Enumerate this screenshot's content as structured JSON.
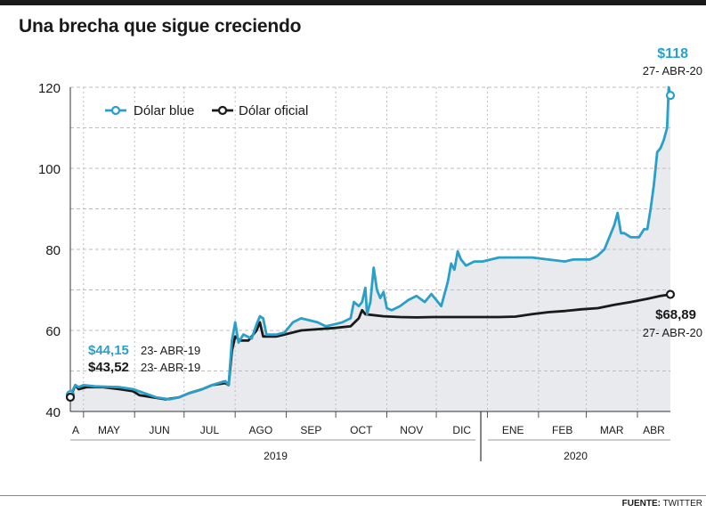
{
  "title": "Una brecha que sigue creciendo",
  "source_label": "FUENTE:",
  "source_value": "TWITTER",
  "colors": {
    "blue": "#2a9fc8",
    "official": "#1a1a1a",
    "fill": "#e8eaed",
    "grid": "#bdbdbd"
  },
  "chart_data": {
    "type": "line",
    "title": "Una brecha que sigue creciendo",
    "ylim": [
      40,
      120
    ],
    "yticks": [
      40,
      60,
      80,
      100,
      120
    ],
    "months": [
      "A",
      "MAY",
      "JUN",
      "JUL",
      "AGO",
      "SEP",
      "OCT",
      "NOV",
      "DIC",
      "ENE",
      "FEB",
      "MAR",
      "ABR"
    ],
    "years": [
      "2019",
      "2020"
    ],
    "legend": {
      "blue": "Dólar blue",
      "official": "Dólar oficial",
      "position": "top-left"
    },
    "x_unit": "days since 23-ABR-2019",
    "series": [
      {
        "name": "Dólar blue",
        "points": [
          [
            0,
            44.15
          ],
          [
            3,
            46.5
          ],
          [
            5,
            46
          ],
          [
            8,
            46.5
          ],
          [
            15,
            46.2
          ],
          [
            30,
            46.0
          ],
          [
            38,
            45.5
          ],
          [
            45,
            44.5
          ],
          [
            52,
            43.5
          ],
          [
            60,
            43.0
          ],
          [
            66,
            43.5
          ],
          [
            72,
            44.5
          ],
          [
            80,
            45.5
          ],
          [
            86,
            46.5
          ],
          [
            94,
            47.5
          ],
          [
            96,
            46.5
          ],
          [
            98,
            57.5
          ],
          [
            100,
            62
          ],
          [
            102,
            57
          ],
          [
            105,
            59
          ],
          [
            110,
            58
          ],
          [
            113,
            61.5
          ],
          [
            115,
            63.5
          ],
          [
            117,
            63
          ],
          [
            119,
            59
          ],
          [
            125,
            59
          ],
          [
            130,
            59.5
          ],
          [
            135,
            62
          ],
          [
            140,
            63
          ],
          [
            145,
            62.5
          ],
          [
            150,
            62
          ],
          [
            155,
            61
          ],
          [
            160,
            61.5
          ],
          [
            165,
            62
          ],
          [
            170,
            63
          ],
          [
            172,
            67
          ],
          [
            175,
            66
          ],
          [
            177,
            67
          ],
          [
            179,
            70.5
          ],
          [
            180,
            64
          ],
          [
            182,
            67
          ],
          [
            184,
            75.5
          ],
          [
            186,
            70
          ],
          [
            188,
            68
          ],
          [
            190,
            69.5
          ],
          [
            192,
            65.5
          ],
          [
            195,
            65
          ],
          [
            200,
            66
          ],
          [
            205,
            67.5
          ],
          [
            210,
            68.5
          ],
          [
            215,
            67
          ],
          [
            219,
            69
          ],
          [
            222,
            67.5
          ],
          [
            225,
            66
          ],
          [
            229,
            72
          ],
          [
            231,
            76.5
          ],
          [
            233,
            75
          ],
          [
            235,
            79.5
          ],
          [
            237,
            77.5
          ],
          [
            240,
            76
          ],
          [
            245,
            77
          ],
          [
            250,
            77
          ],
          [
            255,
            77.5
          ],
          [
            260,
            78
          ],
          [
            270,
            78
          ],
          [
            280,
            78
          ],
          [
            290,
            77.5
          ],
          [
            300,
            77
          ],
          [
            305,
            77.5
          ],
          [
            310,
            77.5
          ],
          [
            315,
            77.5
          ],
          [
            318,
            78
          ],
          [
            320,
            78.5
          ],
          [
            324,
            80
          ],
          [
            326,
            82
          ],
          [
            328,
            84
          ],
          [
            330,
            86
          ],
          [
            332,
            89
          ],
          [
            334,
            84
          ],
          [
            336,
            84
          ],
          [
            340,
            83
          ],
          [
            345,
            83
          ],
          [
            348,
            85
          ],
          [
            350,
            85
          ],
          [
            352,
            90
          ],
          [
            354,
            96
          ],
          [
            356,
            104
          ],
          [
            358,
            105
          ],
          [
            360,
            107
          ],
          [
            362,
            110
          ],
          [
            363,
            120
          ],
          [
            364,
            118
          ]
        ]
      },
      {
        "name": "Dólar oficial",
        "points": [
          [
            0,
            43.52
          ],
          [
            3,
            46.5
          ],
          [
            5,
            45.5
          ],
          [
            10,
            46
          ],
          [
            20,
            46
          ],
          [
            30,
            45.5
          ],
          [
            38,
            45
          ],
          [
            42,
            44
          ],
          [
            50,
            43.5
          ],
          [
            58,
            43
          ],
          [
            66,
            43.5
          ],
          [
            72,
            44.5
          ],
          [
            80,
            45.5
          ],
          [
            86,
            46.5
          ],
          [
            94,
            47
          ],
          [
            96,
            46.5
          ],
          [
            98,
            55
          ],
          [
            100,
            58.5
          ],
          [
            103,
            57.5
          ],
          [
            108,
            57.5
          ],
          [
            113,
            60
          ],
          [
            115,
            62
          ],
          [
            117,
            58.5
          ],
          [
            125,
            58.5
          ],
          [
            130,
            59
          ],
          [
            140,
            60
          ],
          [
            150,
            60.3
          ],
          [
            160,
            60.6
          ],
          [
            170,
            61
          ],
          [
            175,
            63
          ],
          [
            177,
            65
          ],
          [
            179,
            64
          ],
          [
            190,
            63.5
          ],
          [
            200,
            63.3
          ],
          [
            210,
            63.2
          ],
          [
            220,
            63.3
          ],
          [
            230,
            63.3
          ],
          [
            240,
            63.3
          ],
          [
            250,
            63.3
          ],
          [
            260,
            63.3
          ],
          [
            270,
            63.4
          ],
          [
            280,
            64
          ],
          [
            290,
            64.5
          ],
          [
            300,
            64.8
          ],
          [
            310,
            65.2
          ],
          [
            320,
            65.5
          ],
          [
            330,
            66.3
          ],
          [
            340,
            67
          ],
          [
            350,
            67.8
          ],
          [
            358,
            68.5
          ],
          [
            364,
            68.89
          ]
        ]
      }
    ],
    "annotations": [
      {
        "value": "$44,15",
        "date": "23- ABR-19",
        "series": "Dólar blue"
      },
      {
        "value": "$43,52",
        "date": "23- ABR-19",
        "series": "Dólar oficial"
      },
      {
        "value": "$118",
        "date": "27- ABR-20",
        "series": "Dólar blue"
      },
      {
        "value": "$68,89",
        "date": "27- ABR-20",
        "series": "Dólar oficial"
      }
    ]
  }
}
